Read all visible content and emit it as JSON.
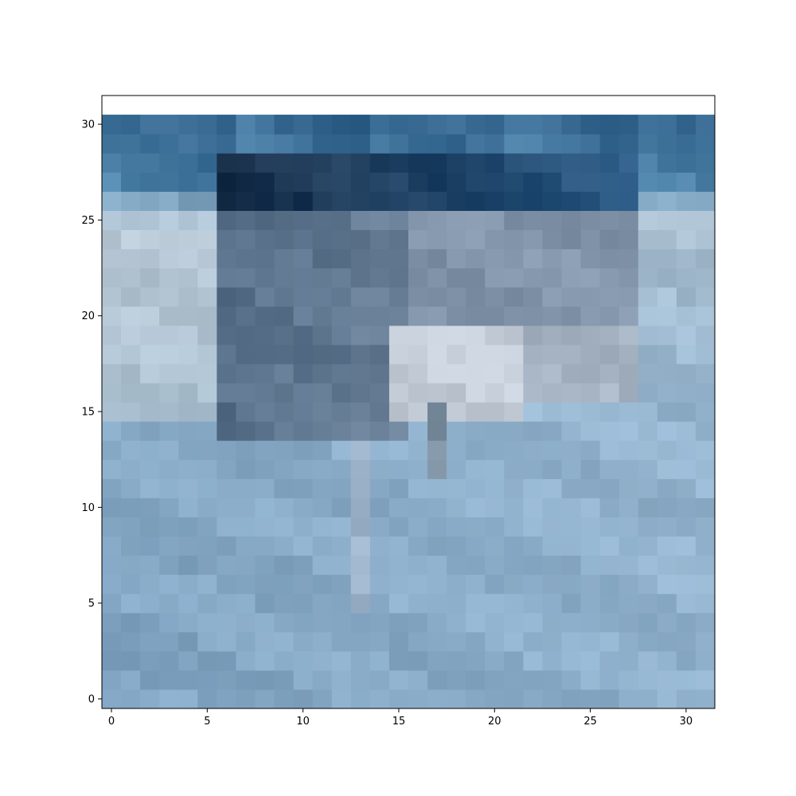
{
  "chart_data": {
    "type": "heatmap",
    "title": "",
    "xlabel": "",
    "ylabel": "",
    "xlim": [
      -0.5,
      31.5
    ],
    "ylim": [
      31.5,
      -0.5
    ],
    "x_ticks": [
      0,
      5,
      10,
      15,
      20,
      25,
      30
    ],
    "y_ticks": [
      0,
      5,
      10,
      15,
      20,
      25,
      30
    ],
    "x_tick_labels": [
      "0",
      "5",
      "10",
      "15",
      "20",
      "25",
      "30"
    ],
    "y_tick_labels": [
      "0",
      "5",
      "10",
      "15",
      "20",
      "25",
      "30"
    ],
    "grid": false,
    "image_size": [
      32,
      32
    ],
    "image_content": "pixelated photograph of a grey ship on blue water under a pale blue sky",
    "colors": {
      "sky_top": "#86aac8",
      "sky_light": "#9dbcd6",
      "sky_horizon": "#b3c8d8",
      "hull_dark": "#5e7690",
      "ship_mid": "#7a8fa6",
      "superstructure_light": "#c2ccd8",
      "waterline_dark": "#1e3550",
      "water_mid": "#2f5f8a",
      "water_light": "#5a8fb5"
    }
  }
}
